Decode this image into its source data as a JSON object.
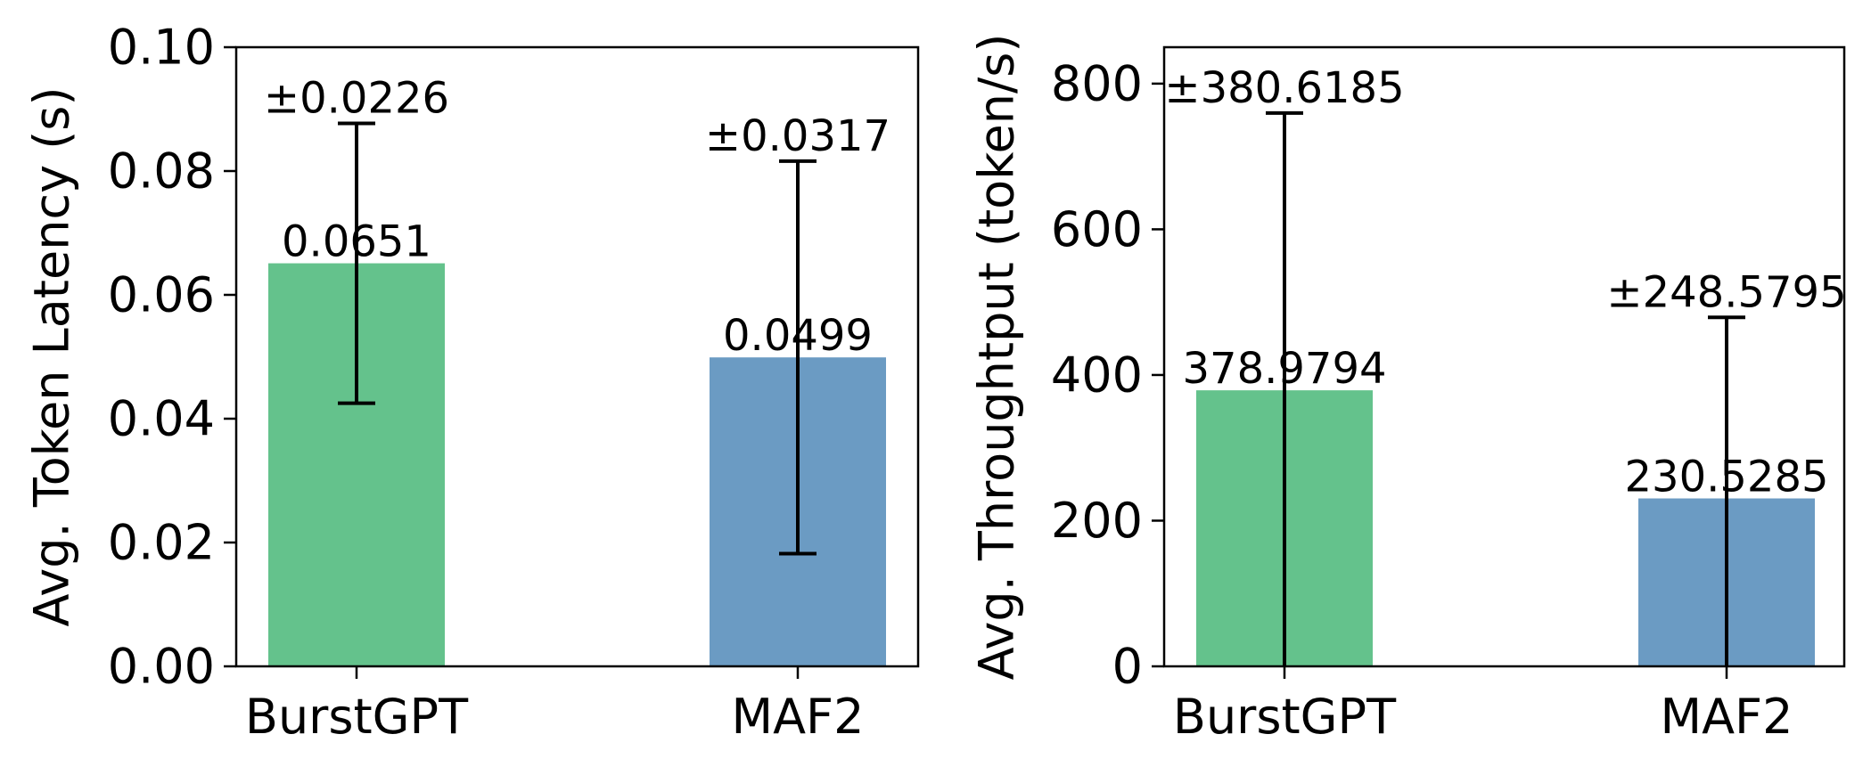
{
  "chart_data": [
    {
      "type": "bar",
      "title": "",
      "xlabel": "",
      "ylabel": "Avg. Token Latency (s)",
      "categories": [
        "BurstGPT",
        "MAF2"
      ],
      "values": [
        0.0651,
        0.0499
      ],
      "errors": [
        0.0226,
        0.0317
      ],
      "value_labels": [
        "0.0651",
        "0.0499"
      ],
      "error_labels": [
        "±0.0226",
        "±0.0317"
      ],
      "bar_colors": [
        "#64c28c",
        "#6b9bc3"
      ],
      "ylim": [
        0,
        0.1
      ],
      "yticks": [
        0,
        0.02,
        0.04,
        0.06,
        0.08,
        0.1
      ],
      "ytick_labels": [
        "0.00",
        "0.02",
        "0.04",
        "0.06",
        "0.08",
        "0.10"
      ],
      "grid": false,
      "legend": "none"
    },
    {
      "type": "bar",
      "title": "",
      "xlabel": "",
      "ylabel": "Avg. Throughtput (token/s)",
      "categories": [
        "BurstGPT",
        "MAF2"
      ],
      "values": [
        378.9794,
        230.5285
      ],
      "errors": [
        380.6185,
        248.5795
      ],
      "value_labels": [
        "378.9794",
        "230.5285"
      ],
      "error_labels": [
        "±380.6185",
        "±248.5795"
      ],
      "bar_colors": [
        "#64c28c",
        "#6b9bc3"
      ],
      "ylim": [
        0,
        850
      ],
      "yticks": [
        0,
        200,
        400,
        600,
        800
      ],
      "ytick_labels": [
        "0",
        "200",
        "400",
        "600",
        "800"
      ],
      "grid": false,
      "legend": "none"
    }
  ]
}
